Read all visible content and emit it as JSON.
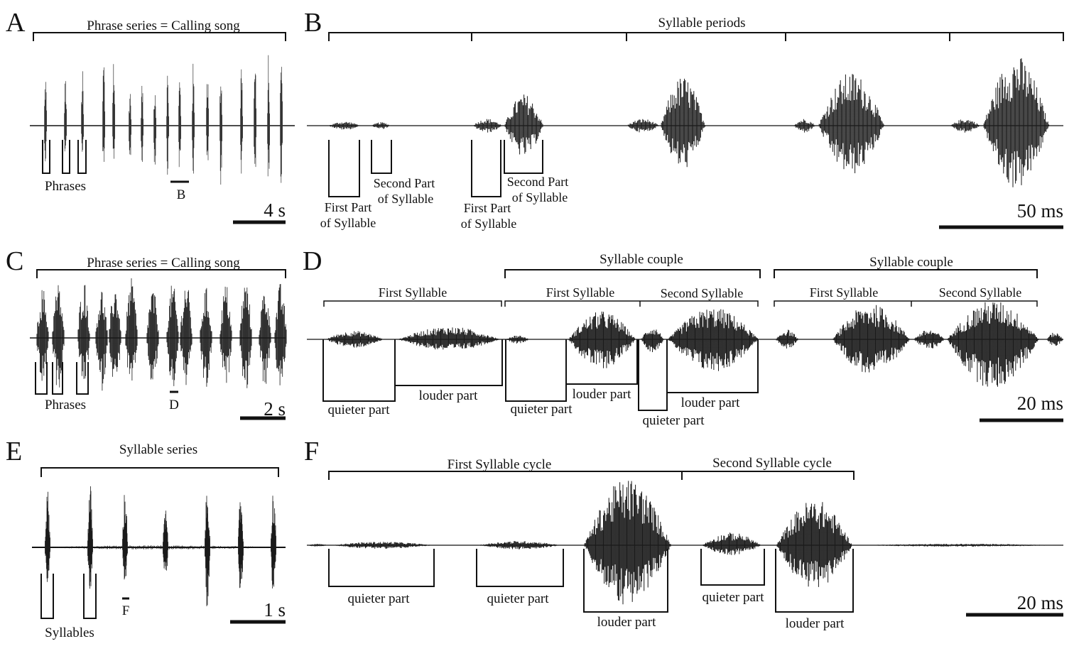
{
  "figure": {
    "colors": {
      "ink": "#111111",
      "waveform": "#1a1a1a",
      "background": "#ffffff"
    },
    "panel_a": {
      "letter": "A",
      "top_label": "Phrase series = Calling song",
      "unit_label": "Phrases",
      "zoom_marker": "B",
      "scale_label": "4 s"
    },
    "panel_b": {
      "letter": "B",
      "top_label": "Syllable periods",
      "first_part": [
        "First Part",
        "of Syllable"
      ],
      "second_part": [
        "Second Part",
        "of Syllable"
      ],
      "first_part_2": [
        "First Part",
        "of Syllable"
      ],
      "second_part_2": [
        "Second Part",
        "of Syllable"
      ],
      "scale_label": "50 ms"
    },
    "panel_c": {
      "letter": "C",
      "top_label": "Phrase series = Calling song",
      "unit_label": "Phrases",
      "zoom_marker": "D",
      "scale_label": "2 s"
    },
    "panel_d": {
      "letter": "D",
      "couple_label_1": "Syllable couple",
      "couple_label_2": "Syllable couple",
      "first_syllable_1": "First Syllable",
      "first_syllable_2": "First Syllable",
      "second_syllable_2": "Second Syllable",
      "first_syllable_3": "First Syllable",
      "second_syllable_3": "Second Syllable",
      "quieter_1": "quieter part",
      "louder_1": "louder part",
      "quieter_2": "quieter part",
      "louder_2": "louder part",
      "quieter_3": "quieter part",
      "louder_3": "louder part",
      "scale_label": "20 ms"
    },
    "panel_e": {
      "letter": "E",
      "top_label": "Syllable series",
      "unit_label": "Syllables",
      "zoom_marker": "F",
      "scale_label": "1 s"
    },
    "panel_f": {
      "letter": "F",
      "cycle_1": "First Syllable cycle",
      "cycle_2": "Second Syllable cycle",
      "quieter_1": "quieter part",
      "quieter_2": "quieter part",
      "louder_1": "louder part",
      "quieter_3": "quieter part",
      "louder_2": "louder part",
      "scale_label": "20 ms"
    }
  }
}
